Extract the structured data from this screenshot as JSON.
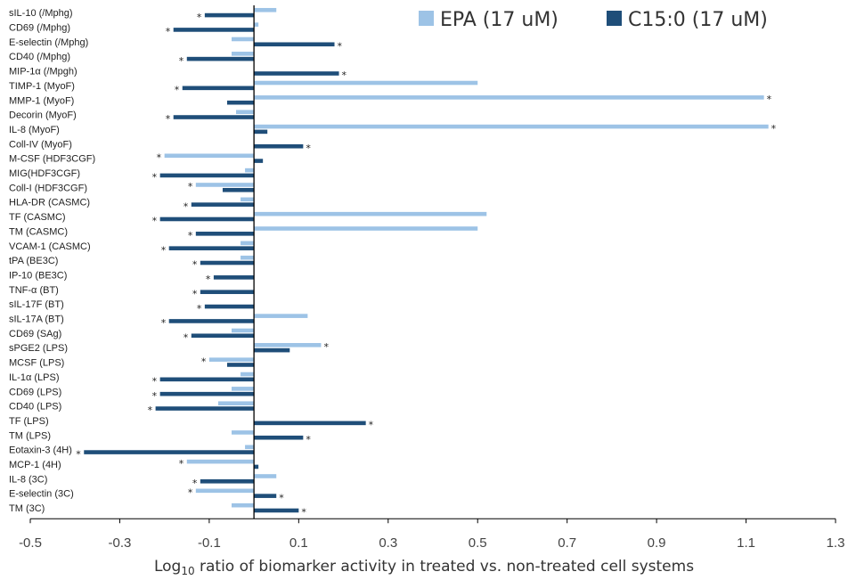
{
  "chart_data": {
    "type": "bar",
    "orientation": "horizontal",
    "xlabel": "Log10 ratio of biomarker activity in treated vs. non-treated cell systems",
    "xlabel_parts": {
      "before": "Log",
      "subscript": "10",
      "after": " ratio of biomarker activity in treated vs. non-treated cell systems"
    },
    "xlim": [
      -0.5,
      1.3
    ],
    "xticks": [
      -0.5,
      -0.3,
      -0.1,
      0.1,
      0.3,
      0.5,
      0.7,
      0.9,
      1.1,
      1.3
    ],
    "xtick_labels": [
      "-0.5",
      "-0.3",
      "-0.1",
      "0.1",
      "0.3",
      "0.5",
      "0.7",
      "0.9",
      "1.1",
      "1.3"
    ],
    "grid": false,
    "legend_position": "top-right",
    "significance_marker": "*",
    "categories": [
      "sIL-10 (/Mphg)",
      "CD69 (/Mphg)",
      "E-selectin (/Mphg)",
      "CD40 (/Mphg)",
      "MIP-1α (/Mpgh)",
      "TIMP-1 (MyoF)",
      "MMP-1 (MyoF)",
      "Decorin (MyoF)",
      "IL-8 (MyoF)",
      "Coll-IV (MyoF)",
      "M-CSF (HDF3CGF)",
      "MIG(HDF3CGF)",
      "Coll-I (HDF3CGF)",
      "HLA-DR (CASMC)",
      "TF (CASMC)",
      "TM (CASMC)",
      "VCAM-1 (CASMC)",
      "tPA (BE3C)",
      "IP-10 (BE3C)",
      "TNF-α (BT)",
      "sIL-17F (BT)",
      "sIL-17A (BT)",
      "CD69 (SAg)",
      "sPGE2 (LPS)",
      "MCSF (LPS)",
      "IL-1α (LPS)",
      "CD69 (LPS)",
      "CD40 (LPS)",
      "TF (LPS)",
      "TM (LPS)",
      "Eotaxin-3 (4H)",
      "MCP-1 (4H)",
      "IL-8 (3C)",
      "E-selectin (3C)",
      "TM (3C)"
    ],
    "series": [
      {
        "name": "EPA (17 uM)",
        "color": "#9dc3e6",
        "values": [
          0.05,
          0.01,
          -0.05,
          -0.05,
          0,
          0.5,
          1.14,
          -0.04,
          1.15,
          0,
          -0.2,
          -0.02,
          -0.13,
          -0.03,
          0.52,
          0.5,
          -0.03,
          -0.03,
          0,
          0,
          0,
          0.12,
          -0.05,
          0.15,
          -0.1,
          -0.03,
          -0.05,
          -0.08,
          0,
          -0.05,
          -0.02,
          -0.15,
          0.05,
          -0.13,
          -0.05
        ],
        "significant": [
          false,
          false,
          false,
          false,
          false,
          false,
          true,
          false,
          true,
          false,
          true,
          false,
          true,
          false,
          false,
          false,
          false,
          false,
          false,
          false,
          false,
          false,
          false,
          true,
          true,
          false,
          false,
          false,
          false,
          false,
          false,
          true,
          false,
          true,
          false
        ]
      },
      {
        "name": "C15:0 (17 uM)",
        "color": "#1f4e79",
        "values": [
          -0.11,
          -0.18,
          0.18,
          -0.15,
          0.19,
          -0.16,
          -0.06,
          -0.18,
          0.03,
          0.11,
          0.02,
          -0.21,
          -0.07,
          -0.14,
          -0.21,
          -0.13,
          -0.19,
          -0.12,
          -0.09,
          -0.12,
          -0.11,
          -0.19,
          -0.14,
          0.08,
          -0.06,
          -0.21,
          -0.21,
          -0.22,
          0.25,
          0.11,
          -0.38,
          0.01,
          -0.12,
          0.05,
          0.1
        ],
        "significant": [
          true,
          true,
          true,
          true,
          true,
          true,
          false,
          true,
          false,
          true,
          false,
          true,
          false,
          true,
          true,
          true,
          true,
          true,
          true,
          true,
          true,
          true,
          true,
          false,
          false,
          true,
          true,
          true,
          true,
          true,
          true,
          false,
          true,
          true,
          true
        ]
      }
    ]
  }
}
